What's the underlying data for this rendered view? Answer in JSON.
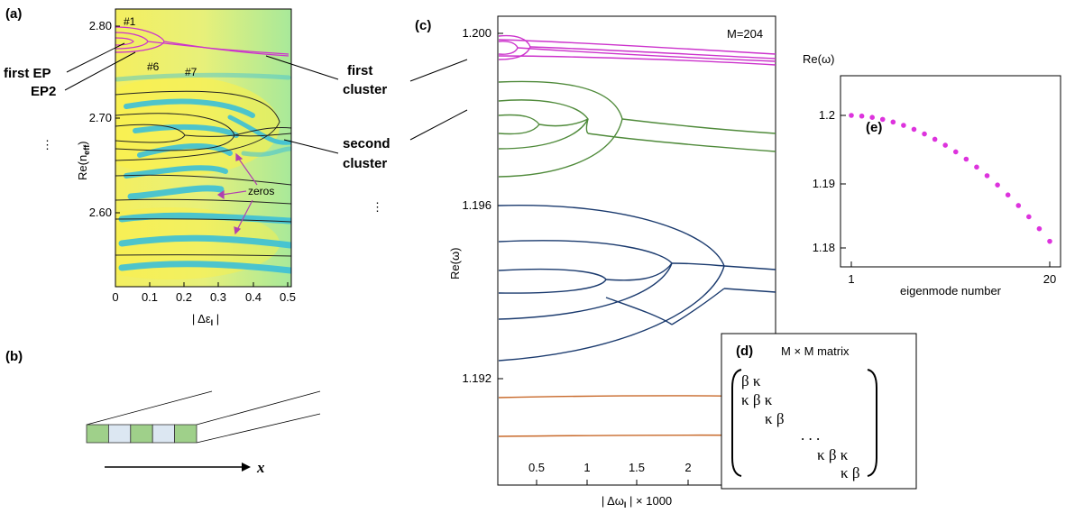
{
  "panel_a": {
    "label": "(a)",
    "ylabel_main": "Re(n",
    "ylabel_sub": "eff",
    "ylabel_close": ")",
    "xlabel_main": "| Δε",
    "xlabel_sub": "I",
    "xlabel_close": " |",
    "annotations": {
      "n1": "#1",
      "n6": "#6",
      "n7": "#7",
      "first_ep": "first EP",
      "ep2": "EP2",
      "zeros": "zeros",
      "first_cluster_1": "first",
      "first_cluster_2": "cluster",
      "second_cluster_1": "second",
      "second_cluster_2": "cluster",
      "ellipsis": "⋮"
    }
  },
  "panel_b": {
    "label": "(b)",
    "axis_label": "x"
  },
  "panel_c": {
    "label": "(c)",
    "ylabel": "Re(ω)",
    "xlabel_main": "| Δω",
    "xlabel_sub": "I",
    "xlabel_close": " | × 1000",
    "inset_text": "M=204",
    "ellipsis": "⋮"
  },
  "panel_d": {
    "label": "(d)",
    "title": "M × M matrix",
    "rows": [
      "β  κ",
      "κ  β  κ",
      "κ  β",
      ". . .",
      "κ  β  κ",
      "κ  β"
    ]
  },
  "panel_e": {
    "label": "(e)",
    "ylabel": "Re(ω)",
    "xlabel": "eigenmode number"
  },
  "colors": {
    "magenta": "#cc33cc",
    "green": "#4f8a3a",
    "navy": "#1a3a6e",
    "orange": "#c8692a"
  },
  "chart_data": [
    {
      "type": "heatmap",
      "panel": "a",
      "xlabel": "| Δε_I |",
      "ylabel": "Re(n_eff)",
      "xlim": [
        0,
        0.5
      ],
      "ylim": [
        2.55,
        2.81
      ],
      "x_ticks": [
        "0",
        "0.1",
        "0.2",
        "0.3",
        "0.4",
        "0.5"
      ],
      "y_ticks": [
        "2.60",
        "2.70",
        "2.80"
      ]
    },
    {
      "type": "line",
      "panel": "c",
      "xlabel": "| Δω_I | × 1000",
      "ylabel": "Re(ω)",
      "xlim": [
        0,
        2.4
      ],
      "ylim": [
        1.19,
        1.2005
      ],
      "x_ticks": [
        "0.5",
        "1",
        "1.5",
        "2"
      ],
      "y_ticks": [
        "1.192",
        "1.196",
        "1.200"
      ]
    },
    {
      "type": "scatter",
      "panel": "e",
      "xlabel": "eigenmode number",
      "ylabel": "Re(ω)",
      "xlim": [
        1,
        20
      ],
      "ylim": [
        1.179,
        1.201
      ],
      "x_ticks": [
        "1",
        "20"
      ],
      "y_ticks": [
        "1.18",
        "1.19",
        "1.2"
      ],
      "x": [
        1,
        2,
        3,
        4,
        5,
        6,
        7,
        8,
        9,
        10,
        11,
        12,
        13,
        14,
        15,
        16,
        17,
        18,
        19,
        20
      ],
      "y": [
        1.2,
        1.1999,
        1.1997,
        1.1994,
        1.199,
        1.1985,
        1.1979,
        1.1972,
        1.1964,
        1.1955,
        1.1945,
        1.1934,
        1.1922,
        1.1909,
        1.1895,
        1.188,
        1.1864,
        1.1847,
        1.1829,
        1.181
      ],
      "color": "#dd33dd"
    }
  ]
}
